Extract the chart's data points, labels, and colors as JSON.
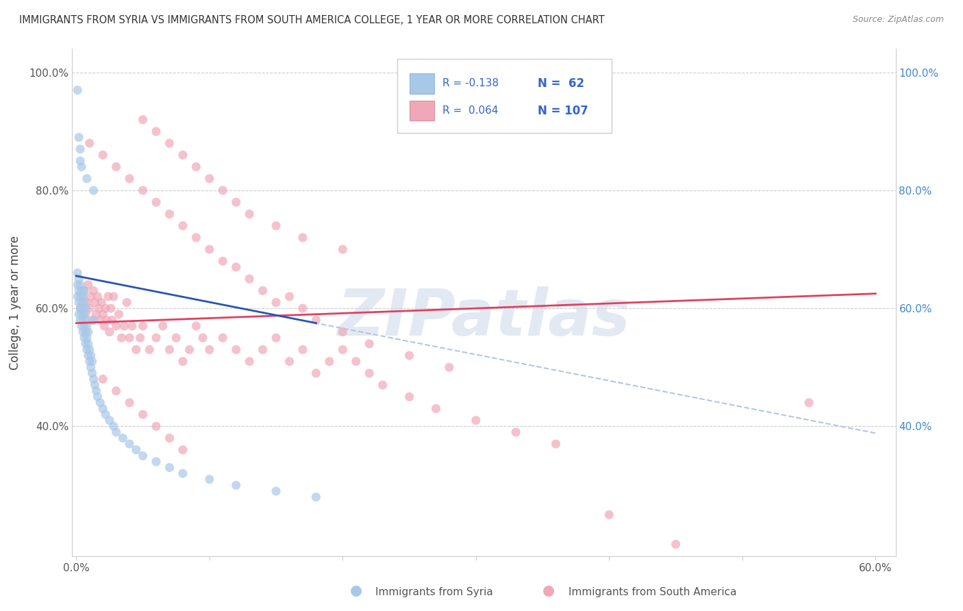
{
  "title": "IMMIGRANTS FROM SYRIA VS IMMIGRANTS FROM SOUTH AMERICA COLLEGE, 1 YEAR OR MORE CORRELATION CHART",
  "source": "Source: ZipAtlas.com",
  "ylabel": "College, 1 year or more",
  "xlabel_blue": "Immigrants from Syria",
  "xlabel_pink": "Immigrants from South America",
  "xlim": [
    -0.003,
    0.615
  ],
  "ylim": [
    0.18,
    1.04
  ],
  "yticks": [
    0.4,
    0.6,
    0.8,
    1.0
  ],
  "blue_color": "#a8c8e8",
  "pink_color": "#f0a8b8",
  "blue_line_color": "#2855b5",
  "pink_line_color": "#e04060",
  "dashed_color": "#b0c8e0",
  "grid_color": "#cccccc",
  "text_color": "#555555",
  "right_tick_color": "#4488cc",
  "watermark": "ZIPatlas",
  "watermark_color": "#ccd8e8",
  "legend_border": "#cccccc",
  "legend_blue_r": "R = -0.138",
  "legend_blue_n": "N =  62",
  "legend_pink_r": "R =  0.064",
  "legend_pink_n": "N = 107",
  "syria_x": [
    0.001,
    0.001,
    0.001,
    0.002,
    0.002,
    0.002,
    0.002,
    0.003,
    0.003,
    0.003,
    0.003,
    0.004,
    0.004,
    0.004,
    0.004,
    0.005,
    0.005,
    0.005,
    0.005,
    0.006,
    0.006,
    0.006,
    0.006,
    0.006,
    0.007,
    0.007,
    0.007,
    0.007,
    0.008,
    0.008,
    0.008,
    0.009,
    0.009,
    0.009,
    0.01,
    0.01,
    0.011,
    0.011,
    0.012,
    0.012,
    0.013,
    0.014,
    0.015,
    0.016,
    0.018,
    0.02,
    0.022,
    0.025,
    0.028,
    0.03,
    0.035,
    0.04,
    0.045,
    0.05,
    0.06,
    0.07,
    0.08,
    0.1,
    0.12,
    0.15,
    0.18,
    0.013
  ],
  "syria_y": [
    0.62,
    0.64,
    0.66,
    0.59,
    0.61,
    0.63,
    0.65,
    0.58,
    0.6,
    0.62,
    0.64,
    0.57,
    0.59,
    0.61,
    0.63,
    0.56,
    0.58,
    0.6,
    0.62,
    0.55,
    0.57,
    0.59,
    0.61,
    0.63,
    0.54,
    0.56,
    0.58,
    0.6,
    0.53,
    0.55,
    0.57,
    0.52,
    0.54,
    0.56,
    0.51,
    0.53,
    0.5,
    0.52,
    0.49,
    0.51,
    0.48,
    0.47,
    0.46,
    0.45,
    0.44,
    0.43,
    0.42,
    0.41,
    0.4,
    0.39,
    0.38,
    0.37,
    0.36,
    0.35,
    0.34,
    0.33,
    0.32,
    0.31,
    0.3,
    0.29,
    0.28,
    0.58
  ],
  "syria_outliers_x": [
    0.001,
    0.002,
    0.003,
    0.003,
    0.004,
    0.008,
    0.013
  ],
  "syria_outliers_y": [
    0.97,
    0.89,
    0.87,
    0.85,
    0.84,
    0.82,
    0.8
  ],
  "south_x": [
    0.003,
    0.005,
    0.006,
    0.007,
    0.008,
    0.009,
    0.01,
    0.011,
    0.012,
    0.013,
    0.014,
    0.015,
    0.016,
    0.017,
    0.018,
    0.019,
    0.02,
    0.021,
    0.022,
    0.023,
    0.024,
    0.025,
    0.026,
    0.027,
    0.028,
    0.03,
    0.032,
    0.034,
    0.036,
    0.038,
    0.04,
    0.042,
    0.045,
    0.048,
    0.05,
    0.055,
    0.06,
    0.065,
    0.07,
    0.075,
    0.08,
    0.085,
    0.09,
    0.095,
    0.1,
    0.11,
    0.12,
    0.13,
    0.14,
    0.15,
    0.16,
    0.17,
    0.18,
    0.19,
    0.2,
    0.21,
    0.22,
    0.23,
    0.25,
    0.27,
    0.3,
    0.33,
    0.36,
    0.4,
    0.45,
    0.55,
    0.01,
    0.02,
    0.03,
    0.04,
    0.05,
    0.06,
    0.07,
    0.08,
    0.09,
    0.1,
    0.11,
    0.12,
    0.13,
    0.14,
    0.15,
    0.16,
    0.17,
    0.18,
    0.2,
    0.22,
    0.25,
    0.28,
    0.05,
    0.06,
    0.07,
    0.08,
    0.09,
    0.1,
    0.11,
    0.12,
    0.13,
    0.15,
    0.17,
    0.2,
    0.02,
    0.03,
    0.04,
    0.05,
    0.06,
    0.07,
    0.08
  ],
  "south_y": [
    0.6,
    0.62,
    0.63,
    0.59,
    0.61,
    0.64,
    0.6,
    0.62,
    0.58,
    0.63,
    0.61,
    0.59,
    0.62,
    0.6,
    0.58,
    0.61,
    0.59,
    0.57,
    0.6,
    0.58,
    0.62,
    0.56,
    0.6,
    0.58,
    0.62,
    0.57,
    0.59,
    0.55,
    0.57,
    0.61,
    0.55,
    0.57,
    0.53,
    0.55,
    0.57,
    0.53,
    0.55,
    0.57,
    0.53,
    0.55,
    0.51,
    0.53,
    0.57,
    0.55,
    0.53,
    0.55,
    0.53,
    0.51,
    0.53,
    0.55,
    0.51,
    0.53,
    0.49,
    0.51,
    0.53,
    0.51,
    0.49,
    0.47,
    0.45,
    0.43,
    0.41,
    0.39,
    0.37,
    0.25,
    0.2,
    0.44,
    0.88,
    0.86,
    0.84,
    0.82,
    0.8,
    0.78,
    0.76,
    0.74,
    0.72,
    0.7,
    0.68,
    0.67,
    0.65,
    0.63,
    0.61,
    0.62,
    0.6,
    0.58,
    0.56,
    0.54,
    0.52,
    0.5,
    0.92,
    0.9,
    0.88,
    0.86,
    0.84,
    0.82,
    0.8,
    0.78,
    0.76,
    0.74,
    0.72,
    0.7,
    0.48,
    0.46,
    0.44,
    0.42,
    0.4,
    0.38,
    0.36
  ]
}
